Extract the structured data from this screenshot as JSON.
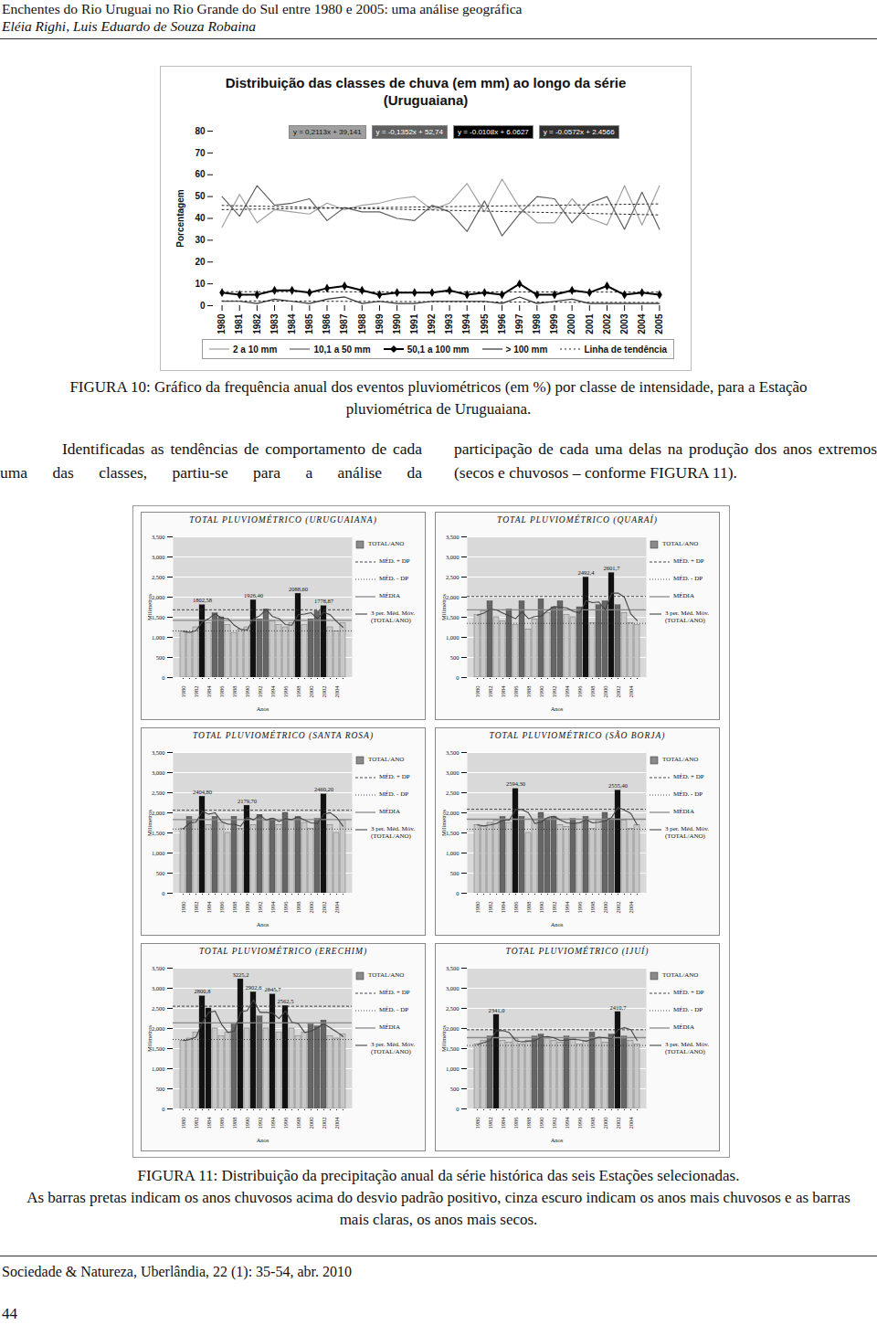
{
  "header": {
    "title": "Enchentes do Rio Uruguai no Rio Grande do Sul entre 1980 e 2005: uma análise geográfica",
    "authors": "Eléia Righi, Luis Eduardo de Souza Robaina"
  },
  "captions": {
    "figure10": "FIGURA 10: Gráfico da frequência anual dos eventos pluviométricos (em %) por classe de intensidade, para a Estação pluviométrica de Uruguaiana.",
    "figure11": [
      "FIGURA 11: Distribuição da precipitação anual da série histórica das seis Estações selecionadas.",
      "As barras pretas indicam os anos chuvosos acima do desvio padrão positivo, cinza escuro indicam os anos mais chuvosos e as barras mais claras, os anos mais secos."
    ]
  },
  "body": {
    "left": "Identificadas as tendências de comportamento de cada uma das classes, partiu-se para a análise da",
    "right": "participação de cada uma delas na produção dos anos extremos (secos e chuvosos – conforme FIGURA 11)."
  },
  "footer": {
    "journal": "Sociedade & Natureza, Uberlândia, 22 (1): 35-54, abr. 2010",
    "page": "44"
  },
  "chart_data": [
    {
      "type": "line",
      "title": "Distribuição das classes de chuva (em mm) ao longo da série (Uruguaiana)",
      "y_label": "Porcentagem",
      "categories": [
        "1980",
        "1981",
        "1982",
        "1983",
        "1984",
        "1985",
        "1986",
        "1987",
        "1988",
        "1989",
        "1990",
        "1991",
        "1992",
        "1993",
        "1994",
        "1995",
        "1996",
        "1997",
        "1998",
        "1999",
        "2000",
        "2001",
        "2002",
        "2003",
        "2004",
        "2005"
      ],
      "ylim": [
        0,
        80
      ],
      "yticks": [
        0,
        10,
        20,
        30,
        40,
        50,
        60,
        70,
        80
      ],
      "grid": false,
      "legend": "bottom",
      "trend_legend": "Linha de tendência",
      "series": [
        {
          "name": "2 a 10 mm",
          "color": "#a0a0a0",
          "marker": "none",
          "line_style": "solid",
          "trend_equation": "y = 0,2113x + 39,141",
          "values": [
            36,
            51,
            38,
            44,
            43,
            42,
            47,
            44,
            46,
            47,
            49,
            50,
            44,
            47,
            56,
            43,
            58,
            45,
            38,
            38,
            49,
            40,
            37,
            55,
            37,
            55
          ]
        },
        {
          "name": "10,1 a 50 mm",
          "color": "#606060",
          "marker": "none",
          "line_style": "solid",
          "trend_equation": "y = -0,1352x + 52,74",
          "values": [
            50,
            41,
            55,
            46,
            47,
            49,
            39,
            45,
            43,
            43,
            40,
            39,
            46,
            43,
            34,
            48,
            32,
            42,
            50,
            49,
            38,
            47,
            50,
            35,
            52,
            35
          ]
        },
        {
          "name": "50,1 a 100 mm",
          "color": "#000000",
          "marker": "diamond",
          "line_style": "solid",
          "trend_equation": "y = -0.0108x + 6.0627",
          "values": [
            6,
            5,
            5,
            7,
            7,
            6,
            8,
            9,
            7,
            5,
            6,
            6,
            6,
            7,
            5,
            6,
            5,
            10,
            5,
            5,
            7,
            6,
            9,
            5,
            6,
            5
          ]
        },
        {
          "name": "> 100 mm",
          "color": "#303030",
          "marker": "none",
          "line_style": "solid",
          "trend_equation": "y = -0.0572x + 2.4566",
          "values": [
            2,
            2,
            1,
            3,
            2,
            1,
            3,
            4,
            1,
            2,
            1,
            1,
            2,
            2,
            2,
            2,
            1,
            4,
            1,
            2,
            3,
            1,
            1,
            1,
            1,
            1
          ]
        }
      ]
    },
    {
      "type": "bar",
      "title": "TOTAL PLUVIOMÉTRICO (URUGUAIANA)",
      "x_label": "Anos",
      "y_label": "Milímetros",
      "categories": [
        "1980",
        null,
        "1982",
        null,
        "1984",
        null,
        "1986",
        null,
        "1988",
        null,
        "1990",
        null,
        "1992",
        null,
        "1994",
        null,
        "1996",
        null,
        "1998",
        null,
        "2000",
        null,
        "2002",
        null,
        "2004",
        null
      ],
      "values": [
        1150,
        1100,
        1250,
        1802.58,
        1350,
        1600,
        1500,
        1300,
        1100,
        1200,
        1250,
        1926.4,
        1450,
        1700,
        1400,
        1300,
        1250,
        1350,
        2088.6,
        1300,
        1450,
        1650,
        1778.87,
        1250,
        1150,
        1350
      ],
      "value_labels": [
        null,
        null,
        null,
        "1802,58",
        null,
        null,
        null,
        null,
        null,
        null,
        null,
        "1926,40",
        null,
        null,
        null,
        null,
        null,
        null,
        "2088,60",
        null,
        null,
        null,
        "1778,87",
        null,
        null,
        null
      ],
      "colors": [
        "#c8c8c8",
        "#c8c8c8",
        "#c8c8c8",
        "#111111",
        "#c8c8c8",
        "#666666",
        "#666666",
        "#c8c8c8",
        "#c8c8c8",
        "#c8c8c8",
        "#c8c8c8",
        "#111111",
        "#666666",
        "#666666",
        "#c8c8c8",
        "#c8c8c8",
        "#c8c8c8",
        "#c8c8c8",
        "#111111",
        "#c8c8c8",
        "#666666",
        "#666666",
        "#111111",
        "#c8c8c8",
        "#c8c8c8",
        "#c8c8c8"
      ],
      "ylim": [
        0,
        3500
      ],
      "yticks": [
        0,
        500,
        1000,
        1500,
        2000,
        2500,
        3000,
        3500
      ],
      "grid": true,
      "data_labels": true,
      "legend": "right",
      "legend_labels": {
        "bars": "TOTAL/ANO",
        "mean_plus_sd": "MÉD. + DP",
        "mean_minus_sd": "MÉD. - DP",
        "mean": "MÉDIA",
        "moving_average": "3 per. Méd. Móv. (TOTAL/ANO)"
      }
    },
    {
      "type": "bar",
      "title": "TOTAL PLUVIOMÉTRICO (QUARAÍ)",
      "x_label": "Anos",
      "y_label": "Milímetros",
      "categories": [
        "1980",
        null,
        "1982",
        null,
        "1984",
        null,
        "1986",
        null,
        "1988",
        null,
        "1990",
        null,
        "1992",
        null,
        "1994",
        null,
        "1996",
        null,
        "1998",
        null,
        "2000",
        null,
        "2002",
        null,
        "2004",
        null
      ],
      "values": [
        1550,
        1650,
        1900,
        1500,
        1400,
        1700,
        1300,
        1900,
        1200,
        1450,
        1950,
        1600,
        1750,
        1900,
        1550,
        1500,
        1750,
        2492.4,
        1350,
        1800,
        1900,
        2601.7,
        1800,
        1600,
        1350,
        1300
      ],
      "value_labels": [
        null,
        null,
        null,
        null,
        null,
        null,
        null,
        null,
        null,
        null,
        null,
        null,
        null,
        null,
        null,
        null,
        null,
        "2492,4",
        null,
        null,
        null,
        "2601,7",
        null,
        null,
        null,
        null
      ],
      "colors": [
        "#c8c8c8",
        "#c8c8c8",
        "#666666",
        "#c8c8c8",
        "#c8c8c8",
        "#666666",
        "#c8c8c8",
        "#666666",
        "#c8c8c8",
        "#c8c8c8",
        "#666666",
        "#c8c8c8",
        "#666666",
        "#666666",
        "#c8c8c8",
        "#c8c8c8",
        "#666666",
        "#111111",
        "#c8c8c8",
        "#666666",
        "#666666",
        "#111111",
        "#666666",
        "#c8c8c8",
        "#c8c8c8",
        "#c8c8c8"
      ],
      "ylim": [
        0,
        3500
      ],
      "yticks": [
        0,
        500,
        1000,
        1500,
        2000,
        2500,
        3000,
        3500
      ],
      "grid": true,
      "data_labels": true,
      "legend": "right",
      "legend_labels": {
        "bars": "TOTAL/ANO",
        "mean_plus_sd": "MÉD. + DP",
        "mean_minus_sd": "MÉD. - DP",
        "mean": "MÉDIA",
        "moving_average": "3 per. Méd. Móv. (TOTAL/ANO)"
      }
    },
    {
      "type": "bar",
      "title": "TOTAL PLUVIOMÉTRICO (SANTA ROSA)",
      "x_label": "Anos",
      "y_label": "Milímetros",
      "categories": [
        "1980",
        null,
        "1982",
        null,
        "1984",
        null,
        "1986",
        null,
        "1988",
        null,
        "1990",
        null,
        "1992",
        null,
        "1994",
        null,
        "1996",
        null,
        "1998",
        null,
        "2000",
        null,
        "2002",
        null,
        "2004",
        null
      ],
      "values": [
        1600,
        1900,
        1800,
        2404.8,
        1700,
        1900,
        1750,
        1500,
        1900,
        1600,
        2179.7,
        1700,
        1950,
        1800,
        1850,
        1700,
        2000,
        1800,
        1900,
        1750,
        1600,
        1850,
        2460.2,
        1700,
        1500,
        1800
      ],
      "value_labels": [
        null,
        null,
        null,
        "2404,80",
        null,
        null,
        null,
        null,
        null,
        null,
        "2179,70",
        null,
        null,
        null,
        null,
        null,
        null,
        null,
        null,
        null,
        null,
        null,
        "2460,20",
        null,
        null,
        null
      ],
      "colors": [
        "#c8c8c8",
        "#666666",
        "#c8c8c8",
        "#111111",
        "#c8c8c8",
        "#666666",
        "#c8c8c8",
        "#c8c8c8",
        "#666666",
        "#c8c8c8",
        "#111111",
        "#c8c8c8",
        "#666666",
        "#c8c8c8",
        "#666666",
        "#c8c8c8",
        "#666666",
        "#c8c8c8",
        "#666666",
        "#c8c8c8",
        "#c8c8c8",
        "#666666",
        "#111111",
        "#c8c8c8",
        "#c8c8c8",
        "#c8c8c8"
      ],
      "ylim": [
        0,
        3500
      ],
      "yticks": [
        0,
        500,
        1000,
        1500,
        2000,
        2500,
        3000,
        3500
      ],
      "grid": true,
      "data_labels": true,
      "legend": "right",
      "legend_labels": {
        "bars": "TOTAL/ANO",
        "mean_plus_sd": "MÉD. + DP",
        "mean_minus_sd": "MÉD. - DP",
        "mean": "MÉDIA",
        "moving_average": "3 per. Méd. Móv. (TOTAL/ANO)"
      }
    },
    {
      "type": "bar",
      "title": "TOTAL PLUVIOMÉTRICO (SÃO BORJA)",
      "x_label": "Anos",
      "y_label": "Milímetros",
      "categories": [
        "1980",
        null,
        "1982",
        null,
        "1984",
        null,
        "1986",
        null,
        "1988",
        null,
        "1990",
        null,
        "1992",
        null,
        "1994",
        null,
        "1996",
        null,
        "1998",
        null,
        "2000",
        null,
        "2002",
        null,
        "2004",
        null
      ],
      "values": [
        1700,
        1650,
        1750,
        1800,
        1900,
        1750,
        2594.3,
        1900,
        1500,
        1800,
        2000,
        1850,
        1900,
        1700,
        1650,
        1850,
        1750,
        1900,
        1600,
        1800,
        2000,
        1850,
        2555.4,
        1800,
        1600,
        1700
      ],
      "value_labels": [
        null,
        null,
        null,
        null,
        null,
        null,
        "2594,30",
        null,
        null,
        null,
        null,
        null,
        null,
        null,
        null,
        null,
        null,
        null,
        null,
        null,
        null,
        null,
        "2555,40",
        null,
        null,
        null
      ],
      "colors": [
        "#c8c8c8",
        "#c8c8c8",
        "#c8c8c8",
        "#c8c8c8",
        "#666666",
        "#c8c8c8",
        "#111111",
        "#666666",
        "#c8c8c8",
        "#c8c8c8",
        "#666666",
        "#666666",
        "#666666",
        "#c8c8c8",
        "#c8c8c8",
        "#666666",
        "#c8c8c8",
        "#666666",
        "#c8c8c8",
        "#c8c8c8",
        "#666666",
        "#666666",
        "#111111",
        "#c8c8c8",
        "#c8c8c8",
        "#c8c8c8"
      ],
      "ylim": [
        0,
        3500
      ],
      "yticks": [
        0,
        500,
        1000,
        1500,
        2000,
        2500,
        3000,
        3500
      ],
      "grid": true,
      "data_labels": true,
      "legend": "right",
      "legend_labels": {
        "bars": "TOTAL/ANO",
        "mean_plus_sd": "MÉD. + DP",
        "mean_minus_sd": "MÉD. - DP",
        "mean": "MÉDIA",
        "moving_average": "3 per. Méd. Móv. (TOTAL/ANO)"
      }
    },
    {
      "type": "bar",
      "title": "TOTAL PLUVIOMÉTRICO (ERECHIM)",
      "x_label": "Anos",
      "y_label": "Milímetros",
      "categories": [
        "1980",
        null,
        "1982",
        null,
        "1984",
        null,
        "1986",
        null,
        "1988",
        null,
        "1990",
        null,
        "1992",
        null,
        "1994",
        null,
        "1996",
        null,
        "1998",
        null,
        "2000",
        null,
        "2002",
        null,
        "2004",
        null
      ],
      "values": [
        1700,
        1750,
        1900,
        2800.8,
        2500,
        2000,
        1800,
        1900,
        2100,
        3225.2,
        2000,
        2902.6,
        2300,
        2000,
        2845.7,
        1900,
        2562.5,
        2000,
        1800,
        1900,
        2100,
        2050,
        2200,
        1800,
        1750,
        1850
      ],
      "value_labels": [
        null,
        null,
        null,
        "2800,8",
        null,
        null,
        null,
        null,
        null,
        "3225,2",
        null,
        "2902,6",
        null,
        null,
        "2845,7",
        null,
        "2562,5",
        null,
        null,
        null,
        null,
        null,
        null,
        null,
        null,
        null
      ],
      "colors": [
        "#c8c8c8",
        "#c8c8c8",
        "#c8c8c8",
        "#111111",
        "#111111",
        "#c8c8c8",
        "#c8c8c8",
        "#c8c8c8",
        "#666666",
        "#111111",
        "#c8c8c8",
        "#111111",
        "#666666",
        "#c8c8c8",
        "#111111",
        "#c8c8c8",
        "#111111",
        "#c8c8c8",
        "#c8c8c8",
        "#c8c8c8",
        "#666666",
        "#666666",
        "#666666",
        "#c8c8c8",
        "#c8c8c8",
        "#c8c8c8"
      ],
      "ylim": [
        0,
        3500
      ],
      "yticks": [
        0,
        500,
        1000,
        1500,
        2000,
        2500,
        3000,
        3500
      ],
      "grid": true,
      "data_labels": true,
      "legend": "right",
      "legend_labels": {
        "bars": "TOTAL/ANO",
        "mean_plus_sd": "MÉD. + DP",
        "mean_minus_sd": "MÉD. - DP",
        "mean": "MÉDIA",
        "moving_average": "3 per. Méd. Móv. (TOTAL/ANO)"
      }
    },
    {
      "type": "bar",
      "title": "TOTAL PLUVIOMÉTRICO (IJUÍ)",
      "x_label": "Anos",
      "y_label": "Milímetros",
      "categories": [
        "1980",
        null,
        "1982",
        null,
        "1984",
        null,
        "1986",
        null,
        "1988",
        null,
        "1990",
        null,
        "1992",
        null,
        "1994",
        null,
        "1996",
        null,
        "1998",
        null,
        "2000",
        null,
        "2002",
        null,
        "2004",
        null
      ],
      "values": [
        1600,
        1700,
        1800,
        2341,
        1700,
        1650,
        1750,
        1600,
        1700,
        1800,
        1850,
        1750,
        1700,
        1650,
        1800,
        1750,
        1600,
        1700,
        1900,
        1750,
        1650,
        1850,
        2410.7,
        1800,
        1700,
        1600
      ],
      "value_labels": [
        null,
        null,
        null,
        "2341,0",
        null,
        null,
        null,
        null,
        null,
        null,
        null,
        null,
        null,
        null,
        null,
        null,
        null,
        null,
        null,
        null,
        null,
        null,
        "2410,7",
        null,
        null,
        null
      ],
      "colors": [
        "#c8c8c8",
        "#c8c8c8",
        "#666666",
        "#111111",
        "#c8c8c8",
        "#c8c8c8",
        "#c8c8c8",
        "#c8c8c8",
        "#c8c8c8",
        "#666666",
        "#666666",
        "#c8c8c8",
        "#c8c8c8",
        "#c8c8c8",
        "#666666",
        "#c8c8c8",
        "#c8c8c8",
        "#c8c8c8",
        "#666666",
        "#c8c8c8",
        "#c8c8c8",
        "#666666",
        "#111111",
        "#666666",
        "#c8c8c8",
        "#c8c8c8"
      ],
      "ylim": [
        0,
        3500
      ],
      "yticks": [
        0,
        500,
        1000,
        1500,
        2000,
        2500,
        3000,
        3500
      ],
      "grid": true,
      "data_labels": true,
      "legend": "right",
      "legend_labels": {
        "bars": "TOTAL/ANO",
        "mean_plus_sd": "MÉD. + DP",
        "mean_minus_sd": "MÉD. - DP",
        "mean": "MÉDIA",
        "moving_average": "3 per. Méd. Móv. (TOTAL/ANO)"
      }
    }
  ]
}
